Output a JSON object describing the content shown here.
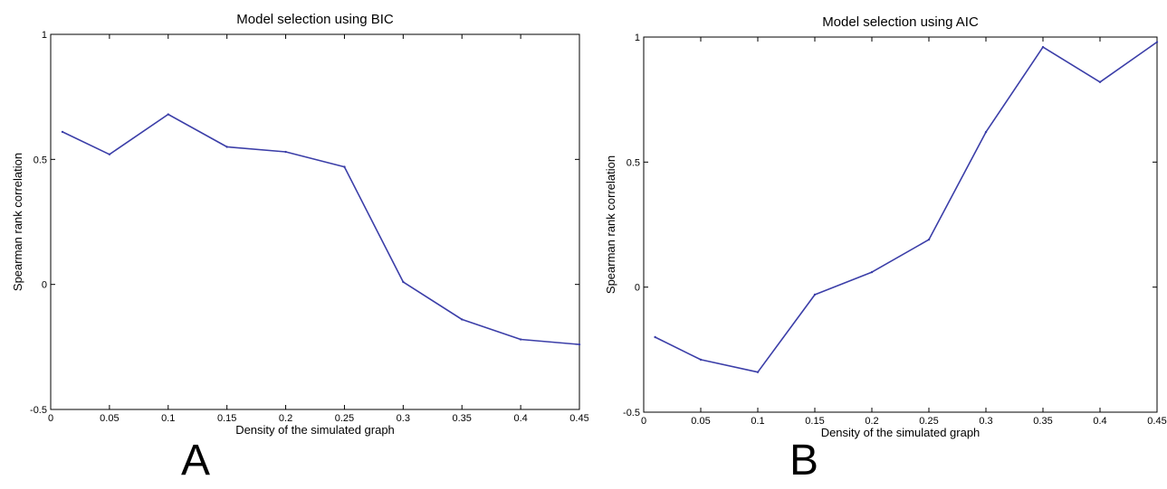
{
  "chart_data": [
    {
      "type": "line",
      "panel_label": "A",
      "title": "Model selection using BIC",
      "xlabel": "Density of the simulated graph",
      "ylabel": "Spearman rank correlation",
      "xlim": [
        0,
        0.45
      ],
      "ylim": [
        -0.5,
        1
      ],
      "x_ticks": [
        "0",
        "0.05",
        "0.1",
        "0.15",
        "0.2",
        "0.25",
        "0.3",
        "0.35",
        "0.4",
        "0.45"
      ],
      "y_ticks": [
        "-0.5",
        "0",
        "0.5",
        "1"
      ],
      "grid": false,
      "line_color": "#3b3ea8",
      "series": [
        {
          "x": [
            0.01,
            0.05,
            0.1,
            0.15,
            0.2,
            0.25,
            0.3,
            0.35,
            0.4,
            0.45
          ],
          "y": [
            0.61,
            0.52,
            0.68,
            0.55,
            0.53,
            0.47,
            0.01,
            -0.14,
            -0.22,
            -0.24
          ]
        }
      ]
    },
    {
      "type": "line",
      "panel_label": "B",
      "title": "Model selection using AIC",
      "xlabel": "Density of the simulated graph",
      "ylabel": "Spearman rank correlation",
      "xlim": [
        0,
        0.45
      ],
      "ylim": [
        -0.5,
        1
      ],
      "x_ticks": [
        "0",
        "0.05",
        "0.1",
        "0.15",
        "0.2",
        "0.25",
        "0.3",
        "0.35",
        "0.4",
        "0.45"
      ],
      "y_ticks": [
        "-0.5",
        "0",
        "0.5",
        "1"
      ],
      "grid": false,
      "line_color": "#3b3ea8",
      "series": [
        {
          "x": [
            0.01,
            0.05,
            0.1,
            0.15,
            0.2,
            0.25,
            0.3,
            0.35,
            0.4,
            0.45
          ],
          "y": [
            -0.2,
            -0.29,
            -0.34,
            -0.03,
            0.06,
            0.19,
            0.62,
            0.96,
            0.82,
            0.98
          ]
        }
      ]
    }
  ]
}
